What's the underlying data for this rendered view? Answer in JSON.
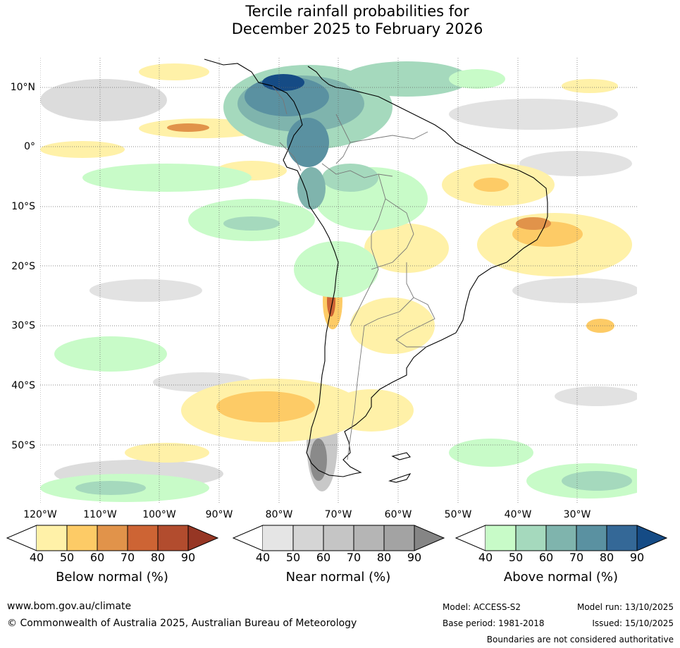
{
  "title_line1": "Tercile rainfall probabilities for",
  "title_line2": "December 2025 to February 2026",
  "map": {
    "lat_labels": [
      "10°N",
      "0°",
      "10°S",
      "20°S",
      "30°S",
      "40°S",
      "50°S"
    ],
    "lon_labels": [
      "120°W",
      "110°W",
      "100°W",
      "90°W",
      "80°W",
      "70°W",
      "60°W",
      "50°W",
      "40°W",
      "30°W"
    ],
    "extent": {
      "lon_min": -120,
      "lon_max": -20,
      "lat_min": -60,
      "lat_max": 15
    }
  },
  "colorbars": [
    {
      "name": "below-normal",
      "label": "Below normal (%)",
      "ticks": [
        "40",
        "50",
        "60",
        "70",
        "80",
        "90"
      ],
      "colors": [
        "#fff1a8",
        "#fdcb66",
        "#e1934a",
        "#cd6434",
        "#b24c2e",
        "#963624"
      ]
    },
    {
      "name": "near-normal",
      "label": "Near normal (%)",
      "ticks": [
        "40",
        "50",
        "60",
        "70",
        "80",
        "90"
      ],
      "colors": [
        "#e5e5e5",
        "#d5d5d5",
        "#c5c5c5",
        "#b5b5b5",
        "#a3a3a3",
        "#858585"
      ]
    },
    {
      "name": "above-normal",
      "label": "Above normal (%)",
      "ticks": [
        "40",
        "50",
        "60",
        "70",
        "80",
        "90"
      ],
      "colors": [
        "#c8fbc8",
        "#a5d9bd",
        "#7fb4ad",
        "#5a91a1",
        "#346897",
        "#154b85"
      ]
    }
  ],
  "footer": {
    "website": "www.bom.gov.au/climate",
    "copyright": "© Commonwealth of Australia 2025, Australian Bureau of Meteorology",
    "model": "Model: ACCESS-S2",
    "base_period": "Base period: 1981-2018",
    "model_run": "Model run: 13/10/2025",
    "issued": "Issued: 15/10/2025",
    "disclaimer": "Boundaries are not considered authoritative"
  }
}
